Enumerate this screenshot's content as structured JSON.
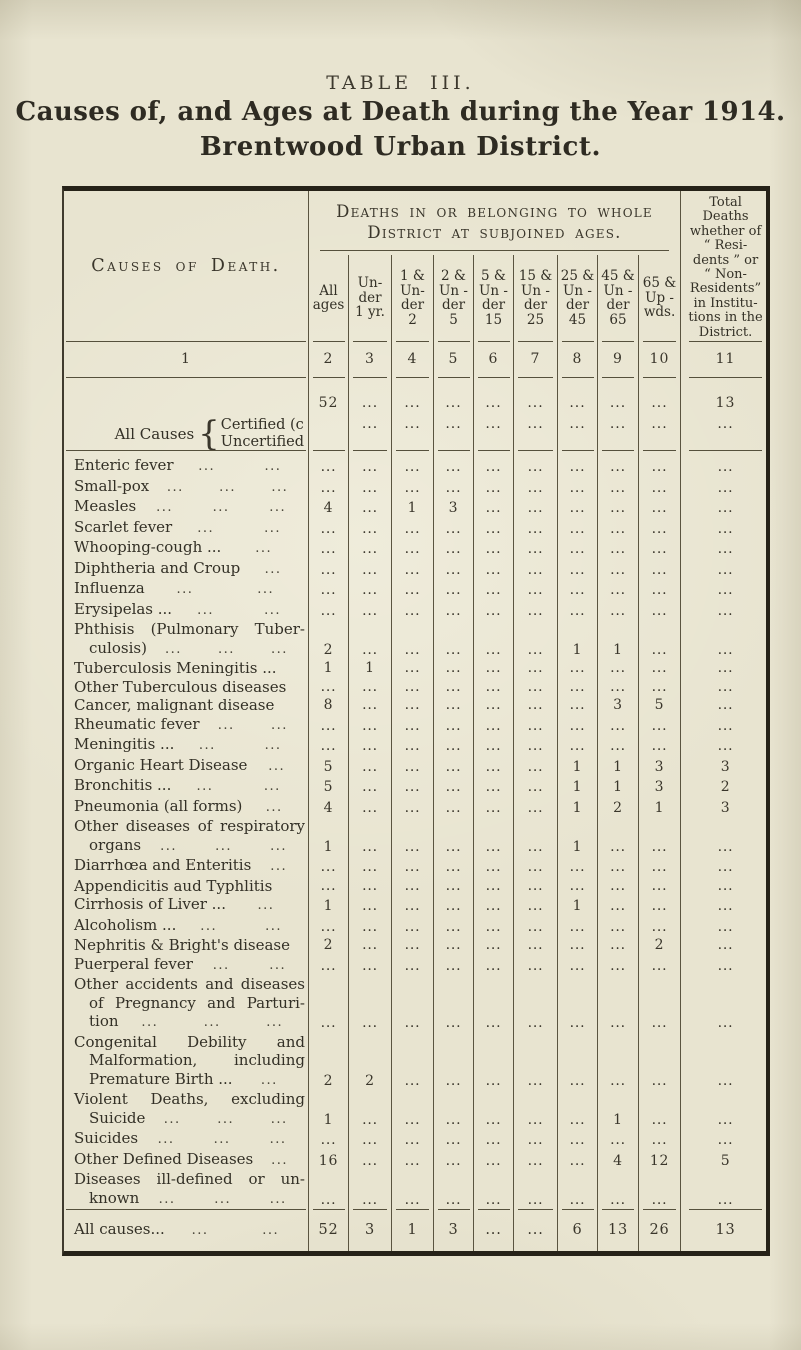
{
  "page": {
    "table_number": "TABLE III.",
    "title": "Causes of, and Ages at Death during the Year 1914.",
    "subtitle": "Brentwood Urban District."
  },
  "table": {
    "leader_glyph": "...",
    "brace_glyph": "{",
    "causes_header": "Causes of Death.",
    "group_header": "Deaths in or belonging to whole District at subjoined ages.",
    "total_header_lines": [
      "Total",
      "Deaths",
      "whether of",
      "“ Resi-",
      "dents ” or",
      "“ Non-",
      "Residents”",
      "in Institu-",
      "tions in the",
      "District."
    ],
    "age_headers": [
      [
        "All",
        "ages"
      ],
      [
        "Un-",
        "der",
        "1 yr."
      ],
      [
        "1 &",
        "Un-",
        "der",
        "2"
      ],
      [
        "2 &",
        "Un -",
        "der",
        "5"
      ],
      [
        "5 &",
        "Un -",
        "der",
        "15"
      ],
      [
        "15 &",
        "Un -",
        "der",
        "25"
      ],
      [
        "25 &",
        "Un -",
        "der",
        "45"
      ],
      [
        "45 &",
        "Un -",
        "der",
        "65"
      ],
      [
        "65 &",
        "Up -",
        "wds."
      ]
    ],
    "column_numbers": [
      "1",
      "2",
      "3",
      "4",
      "5",
      "6",
      "7",
      "8",
      "9",
      "10",
      "11"
    ],
    "all_causes": {
      "label": "All Causes",
      "certified_label": "Certified (c",
      "uncertified_label": "Uncertified",
      "certified_values": [
        "52",
        "...",
        "...",
        "...",
        "...",
        "...",
        "...",
        "...",
        "...",
        "13"
      ],
      "uncertified_values": [
        "",
        "...",
        "...",
        "...",
        "...",
        "...",
        "...",
        "...",
        "...",
        "..."
      ]
    },
    "rows": [
      {
        "lines": [
          "Enteric fever"
        ],
        "leaders": 2,
        "values": [
          "...",
          "...",
          "...",
          "...",
          "...",
          "...",
          "...",
          "...",
          "...",
          "..."
        ]
      },
      {
        "lines": [
          "Small-pox"
        ],
        "leaders": 3,
        "values": [
          "...",
          "...",
          "...",
          "...",
          "...",
          "...",
          "...",
          "...",
          "...",
          "..."
        ]
      },
      {
        "lines": [
          "Measles"
        ],
        "leaders": 3,
        "values": [
          "4",
          "...",
          "1",
          "3",
          "...",
          "...",
          "...",
          "...",
          "...",
          "..."
        ]
      },
      {
        "lines": [
          "Scarlet fever"
        ],
        "leaders": 2,
        "values": [
          "...",
          "...",
          "...",
          "...",
          "...",
          "...",
          "...",
          "...",
          "...",
          "..."
        ]
      },
      {
        "lines": [
          "Whooping-cough ..."
        ],
        "leaders": 1,
        "values": [
          "...",
          "...",
          "...",
          "...",
          "...",
          "...",
          "...",
          "...",
          "...",
          "..."
        ]
      },
      {
        "lines": [
          "Diphtheria and Croup"
        ],
        "leaders": 1,
        "values": [
          "...",
          "...",
          "...",
          "...",
          "...",
          "...",
          "...",
          "...",
          "...",
          "..."
        ]
      },
      {
        "lines": [
          "Influenza"
        ],
        "leaders": 2,
        "values": [
          "...",
          "...",
          "...",
          "...",
          "...",
          "...",
          "...",
          "...",
          "...",
          "..."
        ]
      },
      {
        "lines": [
          "Erysipelas ..."
        ],
        "leaders": 2,
        "values": [
          "...",
          "...",
          "...",
          "...",
          "...",
          "...",
          "...",
          "...",
          "...",
          "..."
        ]
      },
      {
        "lines": [
          "Phthisis (Pulmonary Tuber-",
          "culosis)"
        ],
        "leaders": 3,
        "values": [
          "2",
          "...",
          "...",
          "...",
          "...",
          "...",
          "1",
          "1",
          "...",
          "..."
        ]
      },
      {
        "lines": [
          "Tuberculosis Meningitis ..."
        ],
        "leaders": 0,
        "values": [
          "1",
          "1",
          "...",
          "...",
          "...",
          "...",
          "...",
          "...",
          "...",
          "..."
        ]
      },
      {
        "lines": [
          "Other Tuberculous diseases"
        ],
        "leaders": 0,
        "values": [
          "...",
          "...",
          "...",
          "...",
          "...",
          "...",
          "...",
          "...",
          "...",
          "..."
        ]
      },
      {
        "lines": [
          "Cancer, malignant disease"
        ],
        "leaders": 0,
        "values": [
          "8",
          "...",
          "...",
          "...",
          "...",
          "...",
          "...",
          "3",
          "5",
          "..."
        ]
      },
      {
        "lines": [
          "Rheumatic fever"
        ],
        "leaders": 2,
        "values": [
          "...",
          "...",
          "...",
          "...",
          "...",
          "...",
          "...",
          "...",
          "...",
          "..."
        ]
      },
      {
        "lines": [
          "Meningitis ..."
        ],
        "leaders": 2,
        "values": [
          "...",
          "...",
          "...",
          "...",
          "...",
          "...",
          "...",
          "...",
          "...",
          "..."
        ]
      },
      {
        "lines": [
          "Organic Heart Disease"
        ],
        "leaders": 1,
        "values": [
          "5",
          "...",
          "...",
          "...",
          "...",
          "...",
          "1",
          "1",
          "3",
          "3"
        ]
      },
      {
        "lines": [
          "Bronchitis ..."
        ],
        "leaders": 2,
        "values": [
          "5",
          "...",
          "...",
          "...",
          "...",
          "...",
          "1",
          "1",
          "3",
          "2"
        ]
      },
      {
        "lines": [
          "Pneumonia (all forms)"
        ],
        "leaders": 1,
        "values": [
          "4",
          "...",
          "...",
          "...",
          "...",
          "...",
          "1",
          "2",
          "1",
          "3"
        ]
      },
      {
        "lines": [
          "Other diseases of respiratory",
          "organs"
        ],
        "leaders": 3,
        "values": [
          "1",
          "...",
          "...",
          "...",
          "...",
          "...",
          "1",
          "...",
          "...",
          "..."
        ]
      },
      {
        "lines": [
          "Diarrhœa and Enteritis"
        ],
        "leaders": 1,
        "values": [
          "...",
          "...",
          "...",
          "...",
          "...",
          "...",
          "...",
          "...",
          "...",
          "..."
        ]
      },
      {
        "lines": [
          "Appendicitis aud Typhlitis"
        ],
        "leaders": 0,
        "values": [
          "...",
          "...",
          "...",
          "...",
          "...",
          "...",
          "...",
          "...",
          "...",
          "..."
        ]
      },
      {
        "lines": [
          "Cirrhosis of Liver ..."
        ],
        "leaders": 1,
        "values": [
          "1",
          "...",
          "...",
          "...",
          "...",
          "...",
          "1",
          "...",
          "...",
          "..."
        ]
      },
      {
        "lines": [
          "Alcoholism ..."
        ],
        "leaders": 2,
        "values": [
          "...",
          "...",
          "...",
          "...",
          "...",
          "...",
          "...",
          "...",
          "...",
          "..."
        ]
      },
      {
        "lines": [
          "Nephritis & Bright's disease"
        ],
        "leaders": 0,
        "values": [
          "2",
          "...",
          "...",
          "...",
          "...",
          "...",
          "...",
          "...",
          "2",
          "..."
        ]
      },
      {
        "lines": [
          "Puerperal fever"
        ],
        "leaders": 2,
        "values": [
          "...",
          "...",
          "...",
          "...",
          "...",
          "...",
          "...",
          "...",
          "...",
          "..."
        ]
      },
      {
        "lines": [
          "Other accidents and diseases",
          "of Pregnancy and Parturi-",
          "tion"
        ],
        "leaders": 3,
        "values": [
          "...",
          "...",
          "...",
          "...",
          "...",
          "...",
          "...",
          "...",
          "...",
          "..."
        ]
      },
      {
        "lines": [
          "Congenital Debility and",
          "Malformation, including",
          "Premature Birth ..."
        ],
        "leaders": 1,
        "values": [
          "2",
          "2",
          "...",
          "...",
          "...",
          "...",
          "...",
          "...",
          "...",
          "..."
        ]
      },
      {
        "lines": [
          "Violent Deaths, excluding",
          "Suicide"
        ],
        "leaders": 3,
        "values": [
          "1",
          "...",
          "...",
          "...",
          "...",
          "...",
          "...",
          "1",
          "...",
          "..."
        ]
      },
      {
        "lines": [
          "Suicides"
        ],
        "leaders": 3,
        "values": [
          "...",
          "...",
          "...",
          "...",
          "...",
          "...",
          "...",
          "...",
          "...",
          "..."
        ]
      },
      {
        "lines": [
          "Other Defined Diseases"
        ],
        "leaders": 1,
        "values": [
          "16",
          "...",
          "...",
          "...",
          "...",
          "...",
          "...",
          "4",
          "12",
          "5"
        ]
      },
      {
        "lines": [
          "Diseases ill-defined or un-",
          "known"
        ],
        "leaders": 3,
        "values": [
          "...",
          "...",
          "...",
          "...",
          "...",
          "...",
          "...",
          "...",
          "...",
          "..."
        ]
      }
    ],
    "footer": {
      "lines": [
        "All causes..."
      ],
      "leaders": 2,
      "values": [
        "52",
        "3",
        "1",
        "3",
        "...",
        "...",
        "6",
        "13",
        "26",
        "13"
      ]
    }
  }
}
